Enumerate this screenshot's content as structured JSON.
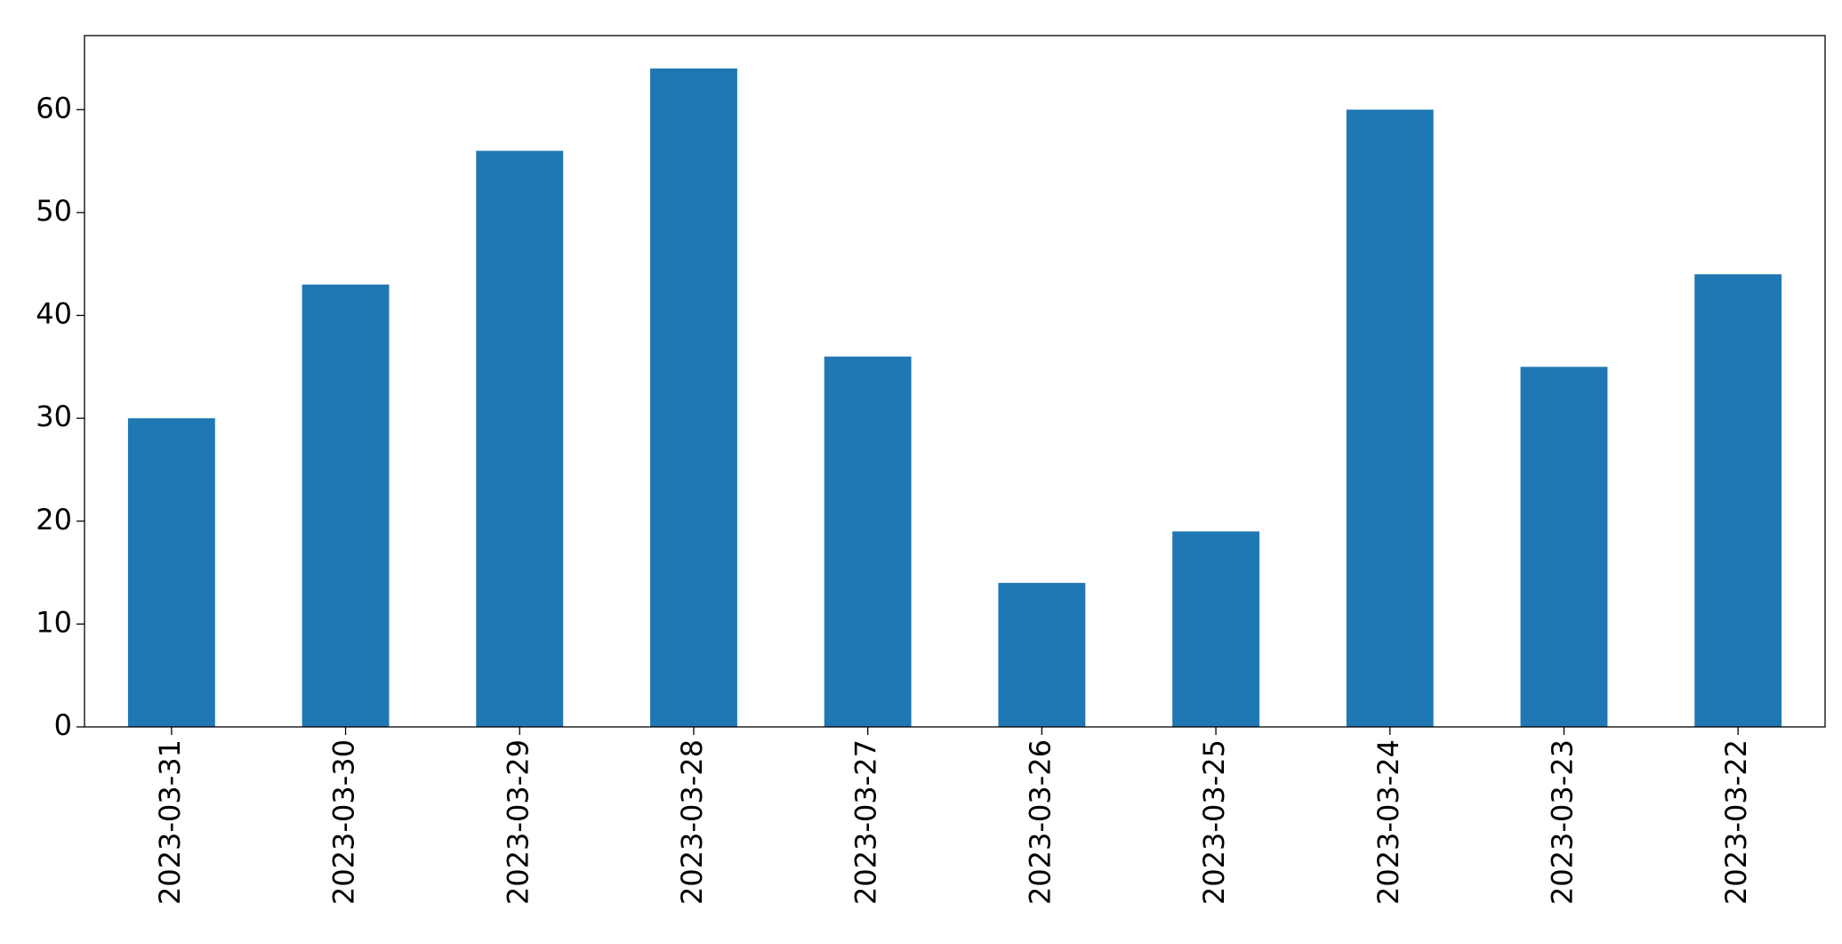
{
  "chart_data": {
    "type": "bar",
    "categories": [
      "2023-03-31",
      "2023-03-30",
      "2023-03-29",
      "2023-03-28",
      "2023-03-27",
      "2023-03-26",
      "2023-03-25",
      "2023-03-24",
      "2023-03-23",
      "2023-03-22"
    ],
    "values": [
      30,
      43,
      56,
      64,
      36,
      14,
      19,
      60,
      35,
      44
    ],
    "color": "#1f77b4",
    "ylim": [
      0,
      67.2
    ],
    "yticks": [
      0,
      10,
      20,
      30,
      40,
      50,
      60
    ],
    "grid": false
  }
}
